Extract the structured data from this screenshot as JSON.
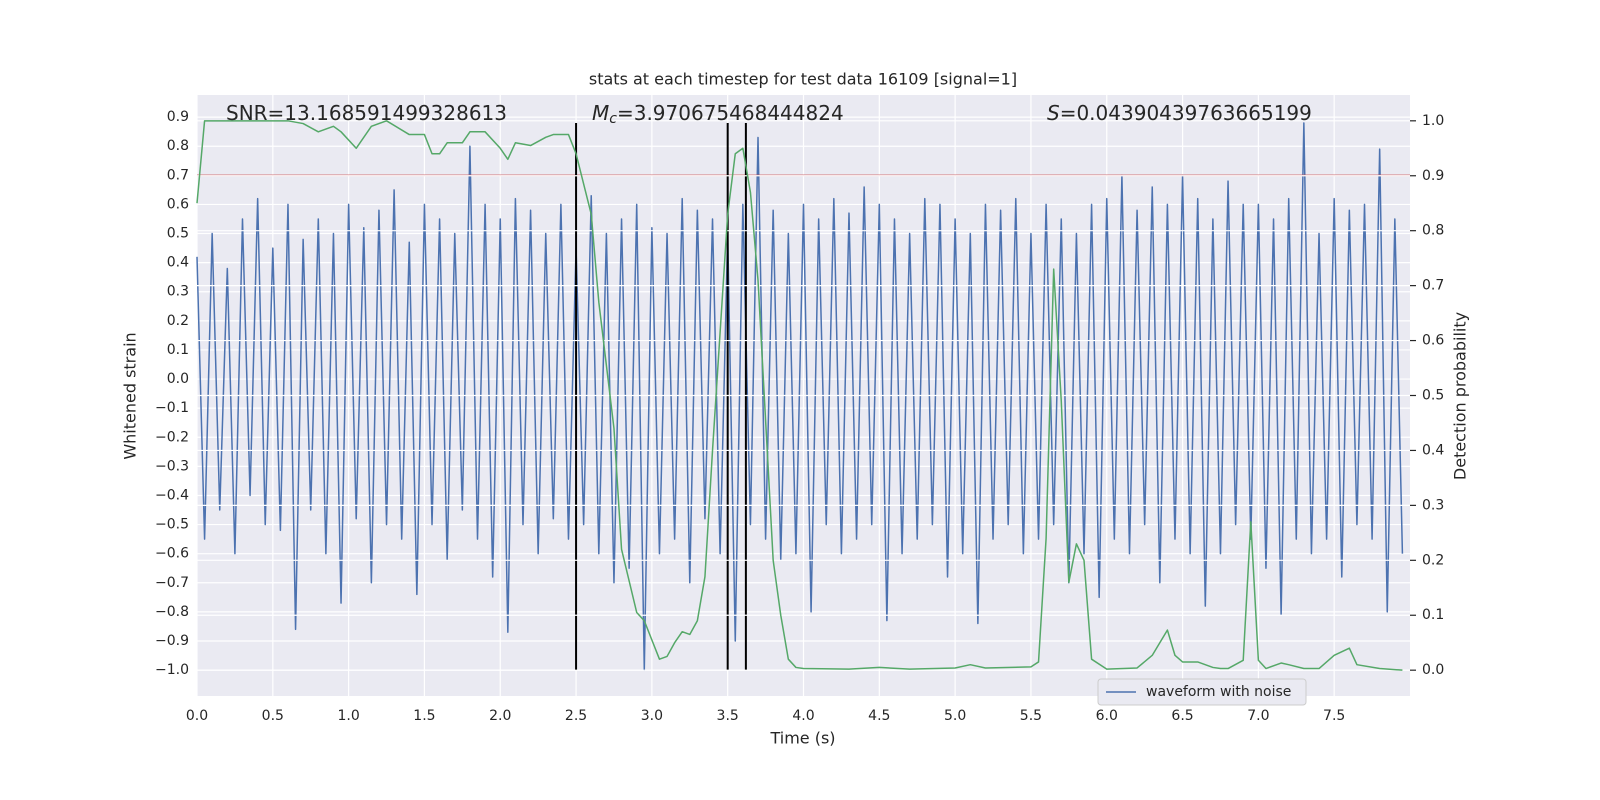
{
  "chart_data": {
    "type": "line",
    "title": "stats at each timestep for test data 16109 [signal=1]",
    "xlabel": "Time (s)",
    "ylabel": "Whitened strain",
    "y2label": "Detection probability",
    "xlim": [
      0,
      8.0
    ],
    "ylim": [
      -1.089,
      0.976
    ],
    "y2lim": [
      -0.047,
      1.047
    ],
    "grid": true,
    "xticks": [
      {
        "value": 0,
        "label": "0.0"
      },
      0.5,
      {
        "value": 1,
        "label": "1.0"
      },
      1.5,
      {
        "value": 2,
        "label": "2.0"
      },
      2.5,
      {
        "value": 3,
        "label": "3.0"
      },
      3.5,
      {
        "value": 4,
        "label": "4.0"
      },
      4.5,
      {
        "value": 5,
        "label": "5.0"
      },
      5.5,
      {
        "value": 6,
        "label": "6.0"
      },
      6.5,
      {
        "value": 7,
        "label": "7.0"
      },
      7.5
    ],
    "yticks": [
      {
        "value": -1.0,
        "label": "−1.0"
      },
      {
        "value": -0.9,
        "label": "−0.9"
      },
      {
        "value": -0.8,
        "label": "−0.8"
      },
      {
        "value": -0.7,
        "label": "−0.7"
      },
      {
        "value": -0.6,
        "label": "−0.6"
      },
      {
        "value": -0.5,
        "label": "−0.5"
      },
      {
        "value": -0.4,
        "label": "−0.4"
      },
      {
        "value": -0.3,
        "label": "−0.3"
      },
      {
        "value": -0.2,
        "label": "−0.2"
      },
      {
        "value": -0.1,
        "label": "−0.1"
      },
      {
        "value": 0,
        "label": "0.0"
      },
      0.1,
      0.2,
      0.3,
      0.4,
      0.5,
      0.6,
      0.7,
      0.8,
      0.9
    ],
    "y2ticks": [
      {
        "value": 0,
        "label": "0.0"
      },
      0.1,
      0.2,
      0.3,
      0.4,
      0.5,
      0.6,
      0.7,
      0.8,
      0.9,
      {
        "value": 1,
        "label": "1.0"
      }
    ],
    "hlines": [
      {
        "y": 0.7,
        "color": "#c44e52"
      }
    ],
    "vlines": {
      "x": [
        2.5,
        3.5,
        3.62
      ],
      "ymin": -1.0,
      "ymax": 0.88,
      "color": "#000000"
    },
    "annotations": [
      {
        "text": "SNR=13.168591499328613"
      },
      {
        "symbol": "M",
        "subscript": "c",
        "text": "=3.970675468444824"
      },
      {
        "symbol": "S",
        "text": "=0.04390439763665199"
      }
    ],
    "series": [
      {
        "name": "waveform with noise",
        "color": "#4c72b0",
        "x": [
          0,
          0.05,
          0.1,
          0.15,
          0.2,
          0.25,
          0.3,
          0.35,
          0.4,
          0.45,
          0.5,
          0.55,
          0.6,
          0.65,
          0.7,
          0.75,
          0.8,
          0.85,
          0.9,
          0.95,
          1,
          1.05,
          1.1,
          1.15,
          1.2,
          1.25,
          1.3,
          1.35,
          1.4,
          1.45,
          1.5,
          1.55,
          1.6,
          1.65,
          1.7,
          1.75,
          1.8,
          1.85,
          1.9,
          1.95,
          2,
          2.05,
          2.1,
          2.15,
          2.2,
          2.25,
          2.3,
          2.35,
          2.4,
          2.45,
          2.5,
          2.55,
          2.6,
          2.65,
          2.7,
          2.75,
          2.8,
          2.85,
          2.9,
          2.95,
          3,
          3.05,
          3.1,
          3.15,
          3.2,
          3.25,
          3.3,
          3.35,
          3.4,
          3.45,
          3.5,
          3.55,
          3.6,
          3.65,
          3.7,
          3.75,
          3.8,
          3.85,
          3.9,
          3.95,
          4,
          4.05,
          4.1,
          4.15,
          4.2,
          4.25,
          4.3,
          4.35,
          4.4,
          4.45,
          4.5,
          4.55,
          4.6,
          4.65,
          4.7,
          4.75,
          4.8,
          4.85,
          4.9,
          4.95,
          5,
          5.05,
          5.1,
          5.15,
          5.2,
          5.25,
          5.3,
          5.35,
          5.4,
          5.45,
          5.5,
          5.55,
          5.6,
          5.65,
          5.7,
          5.75,
          5.8,
          5.85,
          5.9,
          5.95,
          6,
          6.05,
          6.1,
          6.15,
          6.2,
          6.25,
          6.3,
          6.35,
          6.4,
          6.45,
          6.5,
          6.55,
          6.6,
          6.65,
          6.7,
          6.75,
          6.8,
          6.85,
          6.9,
          6.95,
          7,
          7.05,
          7.1,
          7.15,
          7.2,
          7.25,
          7.3,
          7.35,
          7.4,
          7.45,
          7.5,
          7.55,
          7.6,
          7.65,
          7.7,
          7.75,
          7.8,
          7.85,
          7.9,
          7.95
        ],
        "values": [
          0.42,
          -0.55,
          0.5,
          -0.45,
          0.38,
          -0.6,
          0.55,
          -0.4,
          0.62,
          -0.5,
          0.45,
          -0.52,
          0.6,
          -0.86,
          0.48,
          -0.45,
          0.55,
          -0.6,
          0.5,
          -0.77,
          0.6,
          -0.48,
          0.52,
          -0.7,
          0.58,
          -0.5,
          0.65,
          -0.55,
          0.47,
          -0.74,
          0.6,
          -0.5,
          0.55,
          -0.62,
          0.5,
          -0.45,
          0.8,
          -0.55,
          0.6,
          -0.68,
          0.55,
          -0.87,
          0.62,
          -0.5,
          0.58,
          -0.6,
          0.5,
          -0.48,
          0.6,
          -0.55,
          0.45,
          -0.5,
          0.63,
          -0.6,
          0.5,
          -0.7,
          0.55,
          -0.65,
          0.6,
          -1.0,
          0.52,
          -0.6,
          0.5,
          -0.55,
          0.62,
          -0.7,
          0.58,
          -0.48,
          0.55,
          -0.6,
          0.5,
          -0.9,
          0.6,
          -0.5,
          0.83,
          -0.55,
          0.58,
          -0.62,
          0.5,
          -0.6,
          0.6,
          -0.8,
          0.55,
          -0.5,
          0.62,
          -0.6,
          0.57,
          -0.55,
          0.66,
          -0.5,
          0.6,
          -0.83,
          0.55,
          -0.6,
          0.5,
          -0.55,
          0.62,
          -0.5,
          0.6,
          -0.68,
          0.55,
          -0.6,
          0.5,
          -0.84,
          0.6,
          -0.55,
          0.58,
          -0.5,
          0.62,
          -0.6,
          0.5,
          -0.55,
          0.6,
          -0.5,
          0.55,
          -0.7,
          0.5,
          -0.6,
          0.6,
          -0.75,
          0.62,
          -0.55,
          0.7,
          -0.6,
          0.58,
          -0.5,
          0.66,
          -0.7,
          0.6,
          -0.55,
          0.7,
          -0.6,
          0.62,
          -0.78,
          0.55,
          -0.6,
          0.68,
          -0.5,
          0.6,
          -0.55,
          0.6,
          -0.65,
          0.55,
          -0.81,
          0.62,
          -0.55,
          0.88,
          -0.6,
          0.5,
          -0.55,
          0.62,
          -0.68,
          0.58,
          -0.5,
          0.6,
          -0.55,
          0.79,
          -0.8,
          0.55,
          -0.6
        ]
      },
      {
        "color": "#55a868",
        "axis": "y2",
        "x": [
          0,
          0.05,
          0.1,
          0.2,
          0.3,
          0.4,
          0.5,
          0.6,
          0.7,
          0.8,
          0.9,
          0.95,
          1.05,
          1.15,
          1.25,
          1.4,
          1.5,
          1.55,
          1.6,
          1.65,
          1.75,
          1.8,
          1.9,
          2.0,
          2.05,
          2.1,
          2.2,
          2.3,
          2.35,
          2.45,
          2.5,
          2.6,
          2.65,
          2.75,
          2.8,
          2.9,
          2.95,
          3.0,
          3.05,
          3.1,
          3.15,
          3.2,
          3.25,
          3.3,
          3.35,
          3.4,
          3.5,
          3.55,
          3.6,
          3.65,
          3.7,
          3.75,
          3.8,
          3.85,
          3.9,
          3.95,
          4.0,
          4.3,
          4.5,
          4.7,
          5.0,
          5.1,
          5.2,
          5.5,
          5.55,
          5.6,
          5.65,
          5.7,
          5.75,
          5.8,
          5.85,
          5.9,
          6.0,
          6.2,
          6.3,
          6.4,
          6.45,
          6.5,
          6.6,
          6.7,
          6.75,
          6.8,
          6.9,
          6.95,
          7.0,
          7.05,
          7.15,
          7.2,
          7.3,
          7.4,
          7.5,
          7.6,
          7.65,
          7.8,
          7.95
        ],
        "values": [
          0.85,
          1.0,
          1.0,
          1.0,
          1.0,
          1.0,
          1.0,
          1.0,
          0.995,
          0.98,
          0.99,
          0.98,
          0.95,
          0.99,
          1.0,
          0.975,
          0.975,
          0.94,
          0.94,
          0.96,
          0.96,
          0.98,
          0.98,
          0.95,
          0.93,
          0.96,
          0.955,
          0.97,
          0.975,
          0.975,
          0.94,
          0.83,
          0.67,
          0.44,
          0.22,
          0.105,
          0.09,
          0.055,
          0.02,
          0.025,
          0.05,
          0.07,
          0.065,
          0.09,
          0.17,
          0.4,
          0.83,
          0.94,
          0.95,
          0.87,
          0.71,
          0.455,
          0.2,
          0.1,
          0.02,
          0.005,
          0.003,
          0.002,
          0.005,
          0.002,
          0.004,
          0.01,
          0.004,
          0.006,
          0.015,
          0.24,
          0.73,
          0.49,
          0.16,
          0.23,
          0.2,
          0.02,
          0.002,
          0.004,
          0.027,
          0.073,
          0.027,
          0.015,
          0.015,
          0.005,
          0.003,
          0.003,
          0.018,
          0.27,
          0.018,
          0.003,
          0.013,
          0.01,
          0.003,
          0.003,
          0.027,
          0.04,
          0.01,
          0.003,
          0.0
        ]
      }
    ]
  }
}
